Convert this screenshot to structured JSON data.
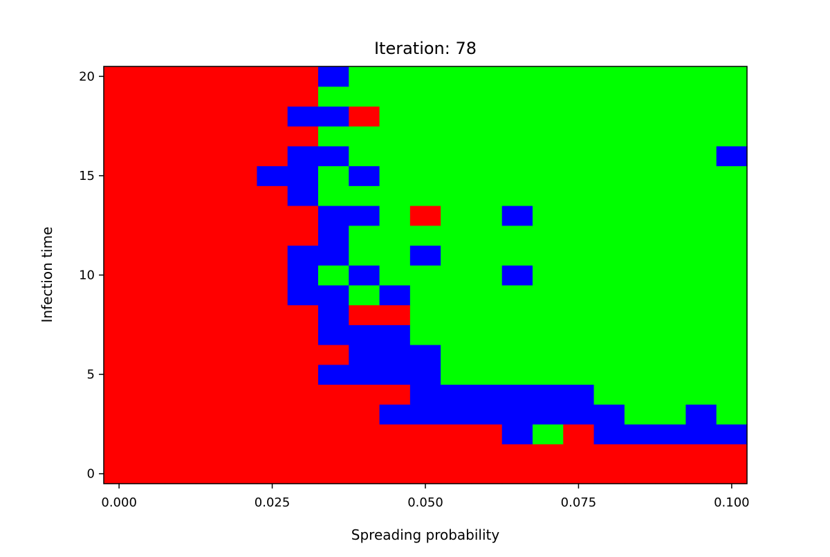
{
  "chart_data": {
    "type": "heatmap",
    "title": "Iteration: 78",
    "xlabel": "Spreading probability",
    "ylabel": "Infection time",
    "x": [
      0.0,
      0.005,
      0.01,
      0.015,
      0.02,
      0.025,
      0.03,
      0.035,
      0.04,
      0.045,
      0.05,
      0.055,
      0.06,
      0.065,
      0.07,
      0.075,
      0.08,
      0.085,
      0.09,
      0.095,
      0.1
    ],
    "y": [
      0,
      1,
      2,
      3,
      4,
      5,
      6,
      7,
      8,
      9,
      10,
      11,
      12,
      13,
      14,
      15,
      16,
      17,
      18,
      19,
      20
    ],
    "xlim": [
      -0.0025,
      0.1025
    ],
    "ylim": [
      -0.5,
      20.5
    ],
    "xticks": [
      0.0,
      0.025,
      0.05,
      0.075,
      0.1
    ],
    "xtick_labels": [
      "0.000",
      "0.025",
      "0.050",
      "0.075",
      "0.100"
    ],
    "yticks": [
      0,
      5,
      10,
      15,
      20
    ],
    "ytick_labels": [
      "0",
      "5",
      "10",
      "15",
      "20"
    ],
    "grid": false,
    "colormap": [
      "#ff0000",
      "#00ff00",
      "#0000ff"
    ],
    "values": [
      "RRRRRRRRRRRRRRRRRRRRR",
      "RRRRRRRRRRRRRRRRRRRRR",
      "RRRRRRRRRRRRRBGRBBBBB",
      "RRRRRRRRRBBBBBBBBGGBG",
      "RRRRRRRRRRBBBBBBGGGGG",
      "RRRRRRRBBBBGGGGGGGGGG",
      "RRRRRRRRBBBGGGGGGGGGG",
      "RRRRRRRBBBGGGGGGGGGGG",
      "RRRRRRRBRRGGGGGGGGGGG",
      "RRRRRRBBGBGGGGGGGGGGG",
      "RRRRRRBGBGGGGBGGGGGGG",
      "RRRRRRBBGGBGGGGGGGGGG",
      "RRRRRRRBGGGGGGGGGGGGG",
      "RRRRRRRBBGRGGBGGGGGGG",
      "RRRRRRBGGGGGGGGGGGGGG",
      "RRRRRBBGBGGGGGGGGGGGG",
      "RRRRRRBBGGGGGGGGGGGGB",
      "RRRRRRRGGGGGGGGGGGGGG",
      "RRRRRRBBRGGGGGGGGGGGG",
      "RRRRRRRGGGGGGGGGGGGGG",
      "RRRRRRRBGGGGGGGGGGGGG"
    ]
  }
}
